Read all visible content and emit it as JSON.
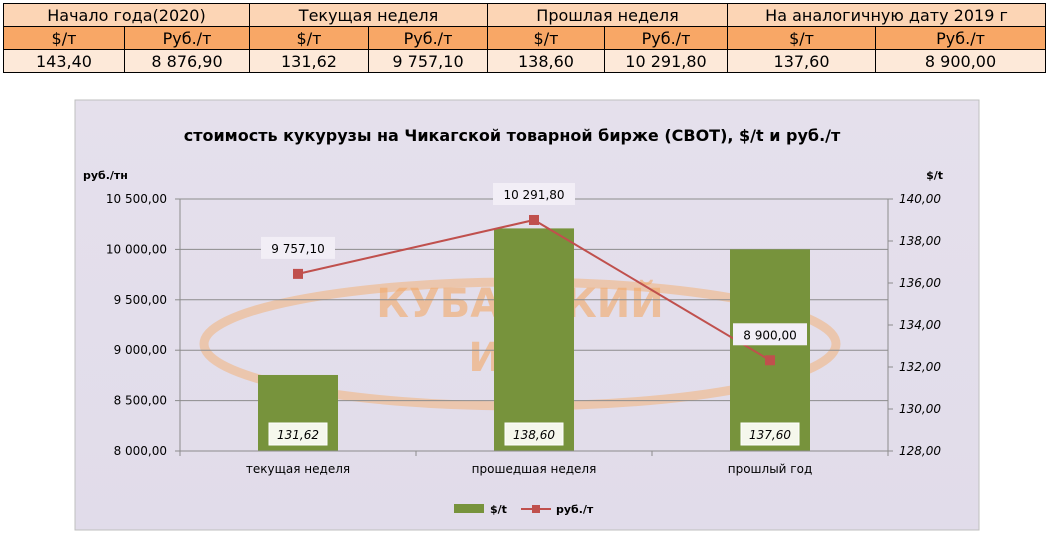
{
  "table": {
    "periods": [
      "Начало года(2020)",
      "Текущая неделя",
      "Прошлая неделя",
      "На аналогичную дату 2019 г"
    ],
    "units": [
      "$/т",
      "Руб./т",
      "$/т",
      "Руб./т",
      "$/т",
      "Руб./т",
      "$/т",
      "Руб./т"
    ],
    "values": [
      "143,40",
      "8 876,90",
      "131,62",
      "9 757,10",
      "138,60",
      "10 291,80",
      "137,60",
      "8 900,00"
    ]
  },
  "chart_data": {
    "type": "bar+line",
    "title": "стоимость кукурузы на Чикагской товарной бирже (CBOT), $/t и руб./т",
    "ylabel_left": "руб./тн",
    "ylabel_right": "$/t",
    "categories": [
      "текущая неделя",
      "прошедшая неделя",
      "прошлый год"
    ],
    "y_left": {
      "min": 8000,
      "max": 10500,
      "step": 500,
      "ticks": [
        "8 000,00",
        "8 500,00",
        "9 000,00",
        "9 500,00",
        "10 000,00",
        "10 500,00"
      ]
    },
    "y_right": {
      "min": 128,
      "max": 140,
      "step": 2,
      "ticks": [
        "128,00",
        "130,00",
        "132,00",
        "134,00",
        "136,00",
        "138,00",
        "140,00"
      ]
    },
    "grid": true,
    "legend_position": "bottom",
    "series": [
      {
        "name": "$/t",
        "type": "bar",
        "axis": "right",
        "color": "#77933c",
        "values": [
          131.62,
          138.6,
          137.6
        ],
        "labels": [
          "131,62",
          "138,60",
          "137,60"
        ]
      },
      {
        "name": "руб./т",
        "type": "line",
        "axis": "left",
        "color": "#c0504d",
        "values": [
          9757.1,
          10291.8,
          8900.0
        ],
        "labels": [
          "9 757,10",
          "10 291,80",
          "8 900,00"
        ]
      }
    ],
    "watermark": [
      "КУБАНСКИЙ",
      "ИКЦ"
    ]
  }
}
